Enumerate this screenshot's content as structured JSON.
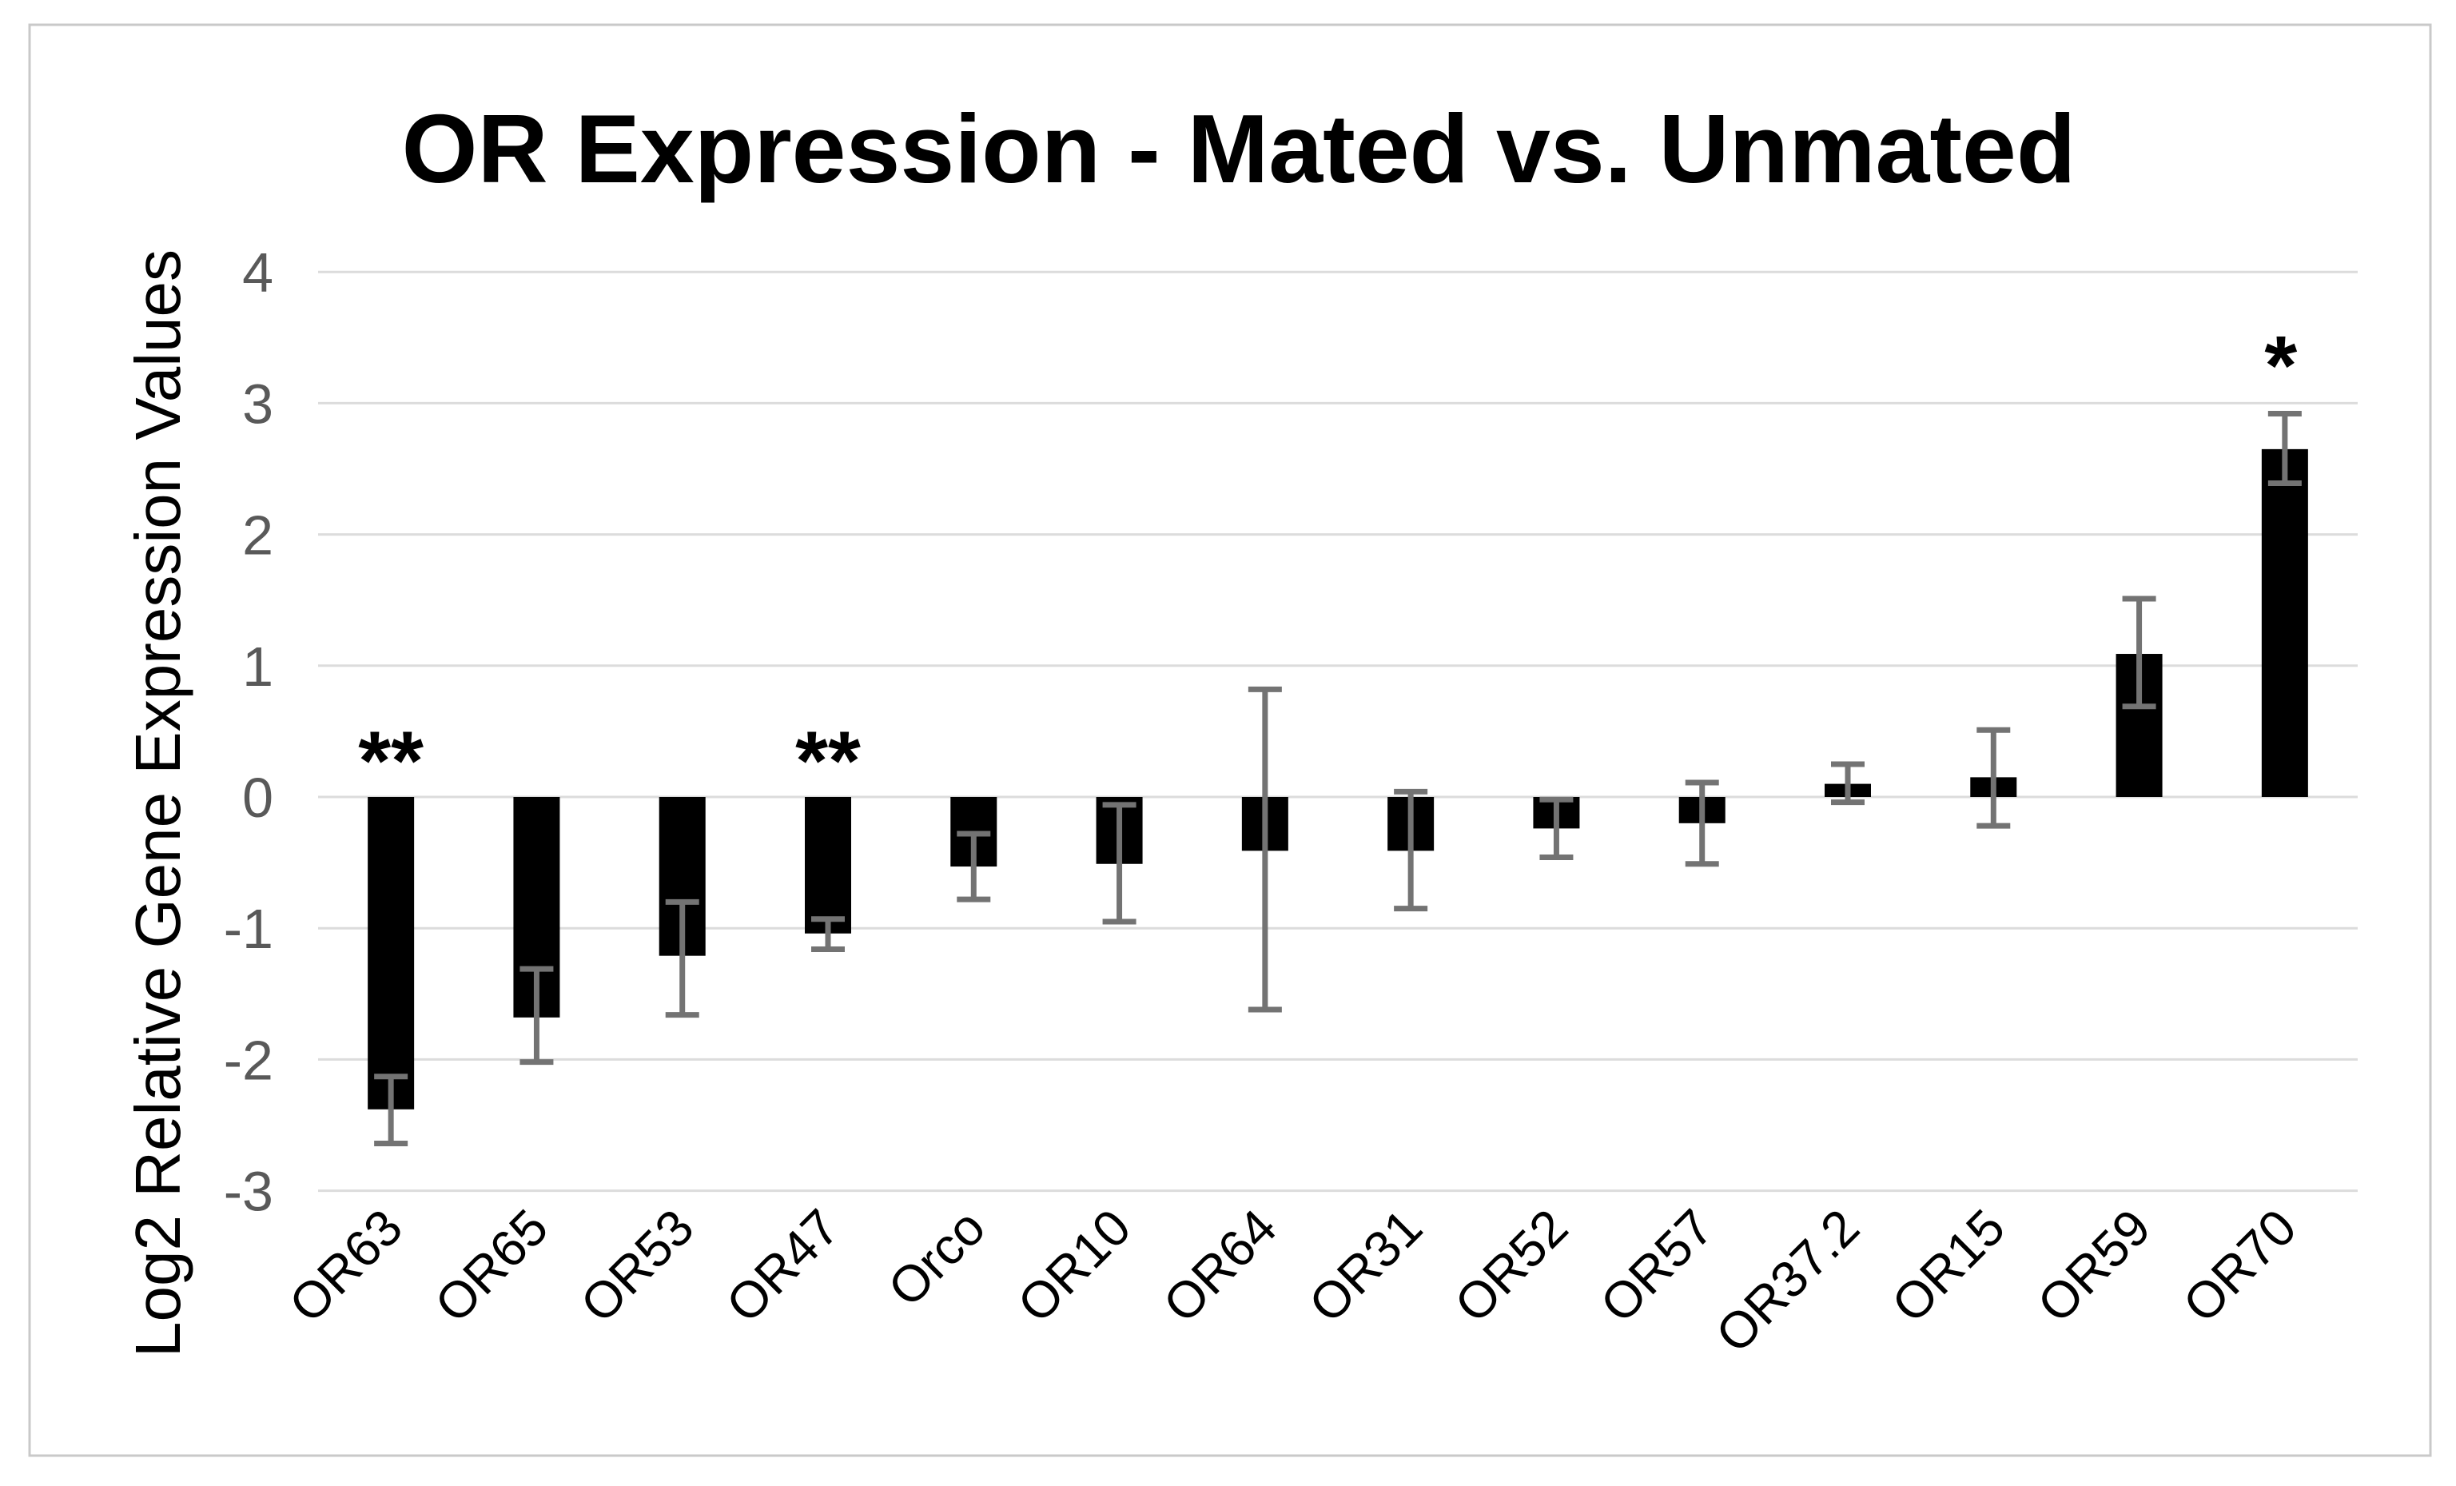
{
  "figure": {
    "background": "#ffffff",
    "border_color": "#c9c9c9"
  },
  "chart_data": {
    "type": "bar",
    "title": "OR Expression - Mated vs. Unmated",
    "xlabel": "",
    "ylabel": "Log2 Relative Gene Expression Values",
    "categories": [
      "OR63",
      "OR65",
      "OR53",
      "OR47",
      "Orco",
      "OR10",
      "OR64",
      "OR31",
      "OR52",
      "OR57",
      "OR37.2",
      "OR15",
      "OR59",
      "OR70"
    ],
    "values": [
      -2.38,
      -1.68,
      -1.21,
      -1.04,
      -0.53,
      -0.51,
      -0.41,
      -0.41,
      -0.24,
      -0.2,
      0.1,
      0.15,
      1.09,
      2.65
    ],
    "error_high": [
      -2.13,
      -1.31,
      -0.8,
      -0.93,
      -0.28,
      -0.06,
      0.82,
      0.04,
      -0.02,
      0.11,
      0.25,
      0.51,
      1.51,
      2.92
    ],
    "error_low": [
      -2.64,
      -2.02,
      -1.66,
      -1.16,
      -0.78,
      -0.95,
      -1.62,
      -0.85,
      -0.46,
      -0.51,
      -0.04,
      -0.22,
      0.69,
      2.39
    ],
    "significance": [
      "**",
      "",
      "",
      "**",
      "",
      "",
      "",
      "",
      "",
      "",
      "",
      "",
      "",
      "*"
    ],
    "yticks": [
      4,
      3,
      2,
      1,
      0,
      -1,
      -2,
      -3
    ],
    "ylim": [
      -3,
      4
    ],
    "grid": true,
    "legend": "none",
    "bar_color": "#000000",
    "error_bar_color": "#737373",
    "gridline_color": "#dcdcdc",
    "tick_label_color": "#595959",
    "text_color": "#000000"
  }
}
